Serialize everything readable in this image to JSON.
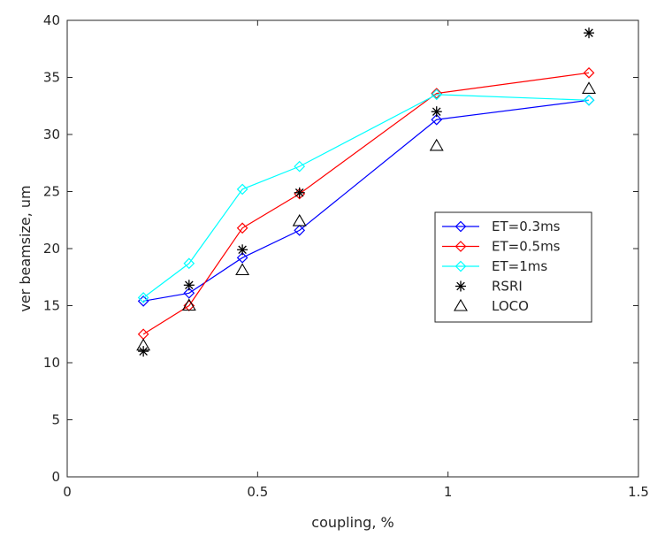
{
  "chart_data": {
    "type": "line",
    "title": "",
    "xlabel": "coupling, %",
    "ylabel": "ver beamsize, um",
    "xlim": [
      0,
      1.5
    ],
    "ylim": [
      0,
      40
    ],
    "xticks": [
      0,
      0.5,
      1,
      1.5
    ],
    "xtick_labels": [
      "0",
      "0.5",
      "1",
      "1.5"
    ],
    "yticks": [
      0,
      5,
      10,
      15,
      20,
      25,
      30,
      35,
      40
    ],
    "ytick_labels": [
      "0",
      "5",
      "10",
      "15",
      "20",
      "25",
      "30",
      "35",
      "40"
    ],
    "grid": false,
    "legend_position": "center-right",
    "series": [
      {
        "name": "ET=0.3ms",
        "color": "#0000ff",
        "style": "line-marker",
        "marker": "diamond",
        "x": [
          0.2,
          0.32,
          0.46,
          0.61,
          0.97,
          1.37
        ],
        "y": [
          15.4,
          16.1,
          19.2,
          21.6,
          31.3,
          33.0
        ]
      },
      {
        "name": "ET=0.5ms",
        "color": "#ff0000",
        "style": "line-marker",
        "marker": "diamond",
        "x": [
          0.2,
          0.32,
          0.46,
          0.61,
          0.97,
          1.37
        ],
        "y": [
          12.5,
          15.0,
          21.8,
          24.8,
          33.6,
          35.4
        ]
      },
      {
        "name": "ET=1ms",
        "color": "#00ffff",
        "style": "line-marker",
        "marker": "diamond",
        "x": [
          0.2,
          0.32,
          0.46,
          0.61,
          0.97,
          1.37
        ],
        "y": [
          15.7,
          18.7,
          25.2,
          27.2,
          33.5,
          33.0
        ]
      },
      {
        "name": "RSRI",
        "color": "#000000",
        "style": "marker",
        "marker": "asterisk",
        "x": [
          0.2,
          0.32,
          0.46,
          0.61,
          0.97,
          1.37
        ],
        "y": [
          11.0,
          16.8,
          19.9,
          24.9,
          32.0,
          38.9
        ]
      },
      {
        "name": "LOCO",
        "color": "#000000",
        "style": "marker",
        "marker": "triangle",
        "x": [
          0.2,
          0.32,
          0.46,
          0.61,
          0.97,
          1.37
        ],
        "y": [
          11.5,
          15.0,
          18.1,
          22.4,
          29.0,
          34.0
        ]
      }
    ]
  }
}
